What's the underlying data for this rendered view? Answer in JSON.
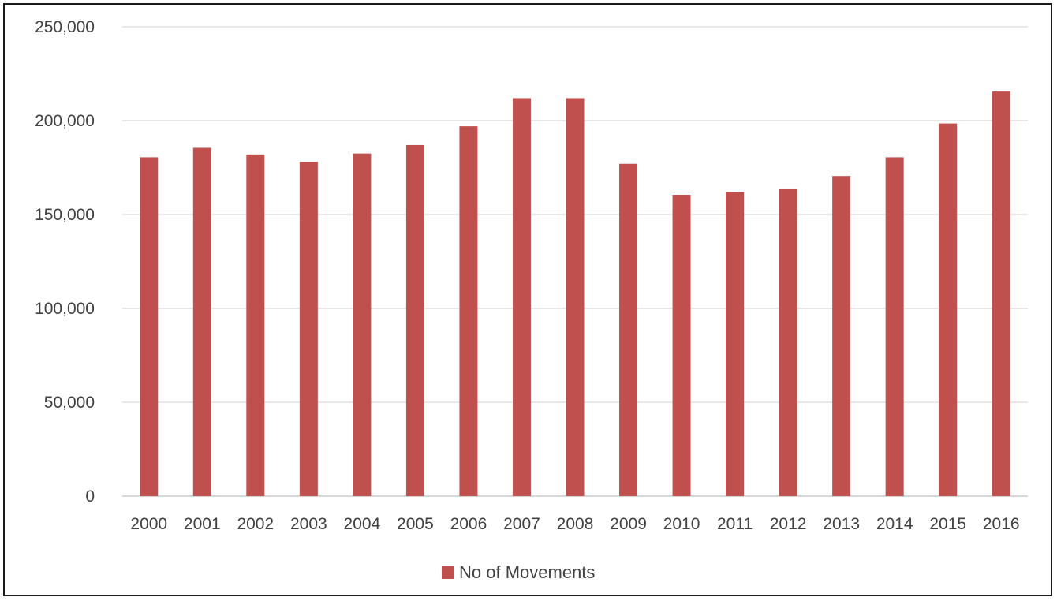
{
  "chart_data": {
    "type": "bar",
    "title": "",
    "xlabel": "",
    "ylabel": "",
    "categories": [
      "2000",
      "2001",
      "2002",
      "2003",
      "2004",
      "2005",
      "2006",
      "2007",
      "2008",
      "2009",
      "2010",
      "2011",
      "2012",
      "2013",
      "2014",
      "2015",
      "2016"
    ],
    "series": [
      {
        "name": "No of Movements",
        "color": "#c0504d",
        "values": [
          180500,
          185500,
          182000,
          178000,
          182500,
          187000,
          197000,
          212000,
          212000,
          177000,
          160500,
          162000,
          163500,
          170500,
          180500,
          198500,
          215500
        ]
      }
    ],
    "ylim": [
      0,
      250000
    ],
    "yticks": [
      0,
      50000,
      100000,
      150000,
      200000,
      250000
    ],
    "ytick_labels": [
      "0",
      "50,000",
      "100,000",
      "150,000",
      "200,000",
      "250,000"
    ],
    "grid": true,
    "legend_position": "bottom"
  }
}
